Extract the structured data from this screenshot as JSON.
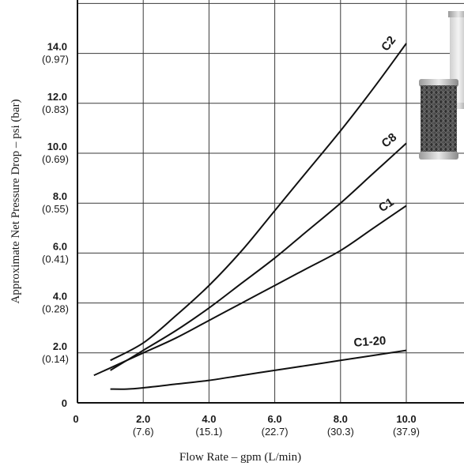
{
  "chart_data": {
    "type": "line",
    "xlabel": "Flow Rate – gpm (L/min)",
    "ylabel": "Approximate Net Pressure Drop – psi (bar)",
    "xlim": [
      0,
      12.5
    ],
    "ylim": [
      0,
      16
    ],
    "x_ticks": [
      {
        "value": 0,
        "label": "0",
        "sub": ""
      },
      {
        "value": 2,
        "label": "2.0",
        "sub": "(7.6)"
      },
      {
        "value": 4,
        "label": "4.0",
        "sub": "(15.1)"
      },
      {
        "value": 6,
        "label": "6.0",
        "sub": "(22.7)"
      },
      {
        "value": 8,
        "label": "8.0",
        "sub": "(30.3)"
      },
      {
        "value": 10,
        "label": "10.0",
        "sub": "(37.9)"
      }
    ],
    "y_ticks": [
      {
        "value": 0,
        "label": "0",
        "sub": ""
      },
      {
        "value": 2,
        "label": "2.0",
        "sub": "(0.14)"
      },
      {
        "value": 4,
        "label": "4.0",
        "sub": "(0.28)"
      },
      {
        "value": 6,
        "label": "6.0",
        "sub": "(0.41)"
      },
      {
        "value": 8,
        "label": "8.0",
        "sub": "(0.55)"
      },
      {
        "value": 10,
        "label": "10.0",
        "sub": "(0.69)"
      },
      {
        "value": 12,
        "label": "12.0",
        "sub": "(0.83)"
      },
      {
        "value": 14,
        "label": "14.0",
        "sub": "(0.97)"
      }
    ],
    "grid": true,
    "series": [
      {
        "name": "C2",
        "x": [
          1.0,
          2.0,
          3.0,
          4.0,
          5.0,
          6.0,
          7.0,
          8.0,
          9.0,
          10.0
        ],
        "y": [
          1.7,
          2.4,
          3.5,
          4.7,
          6.1,
          7.7,
          9.3,
          10.9,
          12.6,
          14.4
        ]
      },
      {
        "name": "C8",
        "x": [
          1.0,
          2.0,
          3.0,
          4.0,
          5.0,
          6.0,
          7.0,
          8.0,
          9.0,
          10.0
        ],
        "y": [
          1.3,
          2.1,
          2.9,
          3.8,
          4.8,
          5.8,
          6.9,
          8.0,
          9.2,
          10.4
        ]
      },
      {
        "name": "C1",
        "x": [
          0.5,
          1.0,
          2.0,
          3.0,
          4.0,
          5.0,
          6.0,
          7.0,
          8.0,
          9.0,
          10.0
        ],
        "y": [
          1.1,
          1.4,
          2.0,
          2.6,
          3.3,
          4.0,
          4.7,
          5.4,
          6.1,
          7.0,
          7.9
        ]
      },
      {
        "name": "C1-20",
        "x": [
          1.0,
          1.5,
          2.0,
          3.0,
          4.0,
          5.0,
          6.0,
          7.0,
          8.0,
          9.0,
          10.0
        ],
        "y": [
          0.55,
          0.55,
          0.6,
          0.75,
          0.9,
          1.1,
          1.3,
          1.5,
          1.7,
          1.9,
          2.1
        ]
      }
    ]
  }
}
